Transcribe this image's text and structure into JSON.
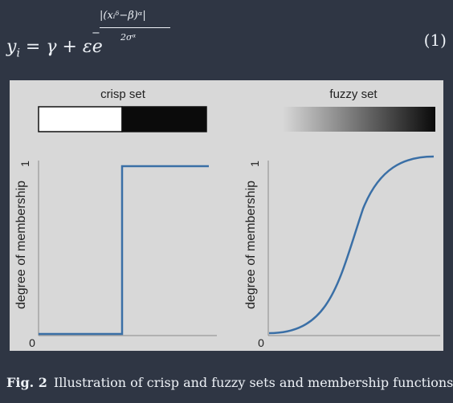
{
  "equation": {
    "lhs": "y",
    "lhs_sub": "i",
    "rhs_prefix": " = γ + εe",
    "exp_minus": "−",
    "exp_numerator": "|(xᵢᵟ−β)ᵅ|",
    "exp_denominator": "2σᵅ",
    "number": "(1)"
  },
  "figure": {
    "panels": [
      {
        "title": "crisp set",
        "ylabel": "degree of membership",
        "ytick_top": "1",
        "ytick_bottom": "0"
      },
      {
        "title": "fuzzy set",
        "ylabel": "degree of membership",
        "ytick_top": "1",
        "ytick_bottom": "0"
      }
    ]
  },
  "caption": {
    "label": "Fig. 2",
    "text": "Illustration of crisp and fuzzy sets and membership functions"
  },
  "colors": {
    "page_background": "#2f3644",
    "figure_background": "#d8d8d8",
    "curve": "#3a6fa6",
    "axis": "#8a8a8a"
  },
  "chart_data": [
    {
      "type": "line",
      "title": "crisp set",
      "ylabel": "degree of membership",
      "xlabel": "",
      "ylim": [
        0,
        1
      ],
      "yticks": [
        0,
        1
      ],
      "x": [
        0,
        0.5,
        0.5,
        1
      ],
      "series": [
        {
          "values": [
            0,
            0,
            1,
            1
          ]
        }
      ],
      "colorbar": "two-tone: white then black"
    },
    {
      "type": "line",
      "title": "fuzzy set",
      "ylabel": "degree of membership",
      "xlabel": "",
      "ylim": [
        0,
        1
      ],
      "yticks": [
        0,
        1
      ],
      "x": [
        0,
        0.1,
        0.2,
        0.3,
        0.4,
        0.5,
        0.6,
        0.7,
        0.8,
        0.9,
        1
      ],
      "series": [
        {
          "values": [
            0.01,
            0.03,
            0.07,
            0.16,
            0.34,
            0.57,
            0.78,
            0.9,
            0.96,
            0.99,
            1.0
          ]
        }
      ],
      "colorbar": "gradient: white to black"
    }
  ]
}
